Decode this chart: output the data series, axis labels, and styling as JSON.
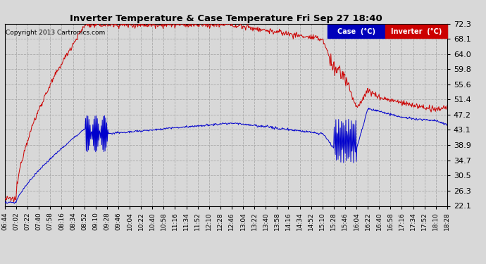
{
  "title": "Inverter Temperature & Case Temperature Fri Sep 27 18:40",
  "copyright": "Copyright 2013 Cartronics.com",
  "background_color": "#d8d8d8",
  "plot_bg_color": "#d8d8d8",
  "grid_color": "#aaaaaa",
  "legend_case_label": "Case  (°C)",
  "legend_inv_label": "Inverter  (°C)",
  "legend_case_bg": "#0000bb",
  "legend_inv_bg": "#cc0000",
  "case_color": "#0000cc",
  "inverter_color": "#cc0000",
  "ylim": [
    22.1,
    72.3
  ],
  "yticks": [
    22.1,
    26.3,
    30.5,
    34.7,
    38.9,
    43.1,
    47.2,
    51.4,
    55.6,
    59.8,
    64.0,
    68.1,
    72.3
  ],
  "xtick_labels": [
    "06:44",
    "07:02",
    "07:22",
    "07:40",
    "07:58",
    "08:16",
    "08:34",
    "08:52",
    "09:10",
    "09:28",
    "09:46",
    "10:04",
    "10:22",
    "10:40",
    "10:58",
    "11:16",
    "11:34",
    "11:52",
    "12:10",
    "12:28",
    "12:46",
    "13:04",
    "13:22",
    "13:40",
    "13:58",
    "14:16",
    "14:34",
    "14:52",
    "15:10",
    "15:28",
    "15:46",
    "16:04",
    "16:22",
    "16:40",
    "16:58",
    "17:16",
    "17:34",
    "17:52",
    "18:10",
    "18:28"
  ],
  "num_points": 800
}
